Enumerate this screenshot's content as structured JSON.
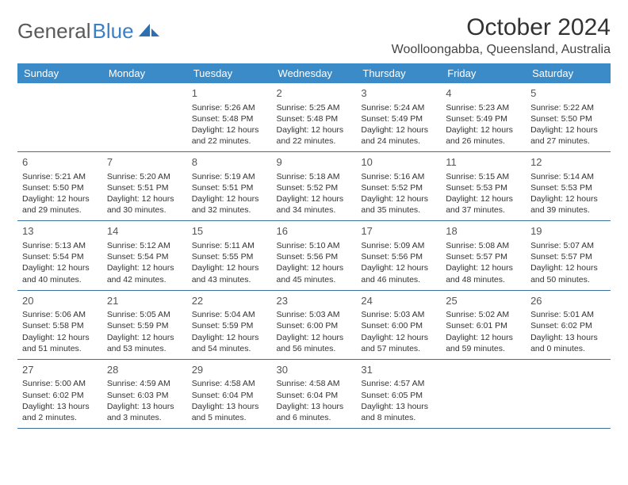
{
  "brand": {
    "part1": "General",
    "part2": "Blue"
  },
  "title": "October 2024",
  "location": "Woolloongabba, Queensland, Australia",
  "colors": {
    "header_bg": "#3b8bc9",
    "header_fg": "#ffffff",
    "row_divider": "#3b6f9c",
    "text": "#333333",
    "brand_gray": "#5a5a5a",
    "brand_blue": "#3b7fc4"
  },
  "weekdays": [
    "Sunday",
    "Monday",
    "Tuesday",
    "Wednesday",
    "Thursday",
    "Friday",
    "Saturday"
  ],
  "weeks": [
    [
      {
        "day": "",
        "lines": []
      },
      {
        "day": "",
        "lines": []
      },
      {
        "day": "1",
        "lines": [
          "Sunrise: 5:26 AM",
          "Sunset: 5:48 PM",
          "Daylight: 12 hours",
          "and 22 minutes."
        ]
      },
      {
        "day": "2",
        "lines": [
          "Sunrise: 5:25 AM",
          "Sunset: 5:48 PM",
          "Daylight: 12 hours",
          "and 22 minutes."
        ]
      },
      {
        "day": "3",
        "lines": [
          "Sunrise: 5:24 AM",
          "Sunset: 5:49 PM",
          "Daylight: 12 hours",
          "and 24 minutes."
        ]
      },
      {
        "day": "4",
        "lines": [
          "Sunrise: 5:23 AM",
          "Sunset: 5:49 PM",
          "Daylight: 12 hours",
          "and 26 minutes."
        ]
      },
      {
        "day": "5",
        "lines": [
          "Sunrise: 5:22 AM",
          "Sunset: 5:50 PM",
          "Daylight: 12 hours",
          "and 27 minutes."
        ]
      }
    ],
    [
      {
        "day": "6",
        "lines": [
          "Sunrise: 5:21 AM",
          "Sunset: 5:50 PM",
          "Daylight: 12 hours",
          "and 29 minutes."
        ]
      },
      {
        "day": "7",
        "lines": [
          "Sunrise: 5:20 AM",
          "Sunset: 5:51 PM",
          "Daylight: 12 hours",
          "and 30 minutes."
        ]
      },
      {
        "day": "8",
        "lines": [
          "Sunrise: 5:19 AM",
          "Sunset: 5:51 PM",
          "Daylight: 12 hours",
          "and 32 minutes."
        ]
      },
      {
        "day": "9",
        "lines": [
          "Sunrise: 5:18 AM",
          "Sunset: 5:52 PM",
          "Daylight: 12 hours",
          "and 34 minutes."
        ]
      },
      {
        "day": "10",
        "lines": [
          "Sunrise: 5:16 AM",
          "Sunset: 5:52 PM",
          "Daylight: 12 hours",
          "and 35 minutes."
        ]
      },
      {
        "day": "11",
        "lines": [
          "Sunrise: 5:15 AM",
          "Sunset: 5:53 PM",
          "Daylight: 12 hours",
          "and 37 minutes."
        ]
      },
      {
        "day": "12",
        "lines": [
          "Sunrise: 5:14 AM",
          "Sunset: 5:53 PM",
          "Daylight: 12 hours",
          "and 39 minutes."
        ]
      }
    ],
    [
      {
        "day": "13",
        "lines": [
          "Sunrise: 5:13 AM",
          "Sunset: 5:54 PM",
          "Daylight: 12 hours",
          "and 40 minutes."
        ]
      },
      {
        "day": "14",
        "lines": [
          "Sunrise: 5:12 AM",
          "Sunset: 5:54 PM",
          "Daylight: 12 hours",
          "and 42 minutes."
        ]
      },
      {
        "day": "15",
        "lines": [
          "Sunrise: 5:11 AM",
          "Sunset: 5:55 PM",
          "Daylight: 12 hours",
          "and 43 minutes."
        ]
      },
      {
        "day": "16",
        "lines": [
          "Sunrise: 5:10 AM",
          "Sunset: 5:56 PM",
          "Daylight: 12 hours",
          "and 45 minutes."
        ]
      },
      {
        "day": "17",
        "lines": [
          "Sunrise: 5:09 AM",
          "Sunset: 5:56 PM",
          "Daylight: 12 hours",
          "and 46 minutes."
        ]
      },
      {
        "day": "18",
        "lines": [
          "Sunrise: 5:08 AM",
          "Sunset: 5:57 PM",
          "Daylight: 12 hours",
          "and 48 minutes."
        ]
      },
      {
        "day": "19",
        "lines": [
          "Sunrise: 5:07 AM",
          "Sunset: 5:57 PM",
          "Daylight: 12 hours",
          "and 50 minutes."
        ]
      }
    ],
    [
      {
        "day": "20",
        "lines": [
          "Sunrise: 5:06 AM",
          "Sunset: 5:58 PM",
          "Daylight: 12 hours",
          "and 51 minutes."
        ]
      },
      {
        "day": "21",
        "lines": [
          "Sunrise: 5:05 AM",
          "Sunset: 5:59 PM",
          "Daylight: 12 hours",
          "and 53 minutes."
        ]
      },
      {
        "day": "22",
        "lines": [
          "Sunrise: 5:04 AM",
          "Sunset: 5:59 PM",
          "Daylight: 12 hours",
          "and 54 minutes."
        ]
      },
      {
        "day": "23",
        "lines": [
          "Sunrise: 5:03 AM",
          "Sunset: 6:00 PM",
          "Daylight: 12 hours",
          "and 56 minutes."
        ]
      },
      {
        "day": "24",
        "lines": [
          "Sunrise: 5:03 AM",
          "Sunset: 6:00 PM",
          "Daylight: 12 hours",
          "and 57 minutes."
        ]
      },
      {
        "day": "25",
        "lines": [
          "Sunrise: 5:02 AM",
          "Sunset: 6:01 PM",
          "Daylight: 12 hours",
          "and 59 minutes."
        ]
      },
      {
        "day": "26",
        "lines": [
          "Sunrise: 5:01 AM",
          "Sunset: 6:02 PM",
          "Daylight: 13 hours",
          "and 0 minutes."
        ]
      }
    ],
    [
      {
        "day": "27",
        "lines": [
          "Sunrise: 5:00 AM",
          "Sunset: 6:02 PM",
          "Daylight: 13 hours",
          "and 2 minutes."
        ]
      },
      {
        "day": "28",
        "lines": [
          "Sunrise: 4:59 AM",
          "Sunset: 6:03 PM",
          "Daylight: 13 hours",
          "and 3 minutes."
        ]
      },
      {
        "day": "29",
        "lines": [
          "Sunrise: 4:58 AM",
          "Sunset: 6:04 PM",
          "Daylight: 13 hours",
          "and 5 minutes."
        ]
      },
      {
        "day": "30",
        "lines": [
          "Sunrise: 4:58 AM",
          "Sunset: 6:04 PM",
          "Daylight: 13 hours",
          "and 6 minutes."
        ]
      },
      {
        "day": "31",
        "lines": [
          "Sunrise: 4:57 AM",
          "Sunset: 6:05 PM",
          "Daylight: 13 hours",
          "and 8 minutes."
        ]
      },
      {
        "day": "",
        "lines": []
      },
      {
        "day": "",
        "lines": []
      }
    ]
  ]
}
